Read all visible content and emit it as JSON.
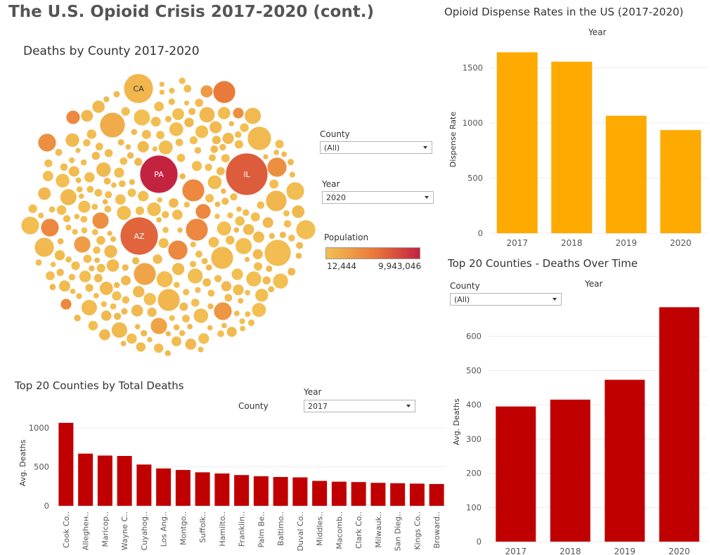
{
  "dashboard_title": "The U.S. Opioid Crisis 2017-2020 (cont.)",
  "bubble": {
    "title": "Deaths by County 2017-2020",
    "labels": [
      "PA",
      "CA",
      "IL",
      "AZ"
    ],
    "filters": {
      "county_label": "County",
      "county_value": "(All)",
      "year_label": "Year",
      "year_value": "2020"
    },
    "legend": {
      "title": "Population",
      "min_label": "12,444",
      "max_label": "9,943,046",
      "colors": [
        "#f2c052",
        "#ea7a3a",
        "#c42340"
      ]
    }
  },
  "dispense": {
    "title": "Opioid Dispense Rates in the US (2017-2020)",
    "header": "Year",
    "ylabel": "Dispense Rate",
    "color": "#ffaa00"
  },
  "top20": {
    "title": "Top 20 Counties by Total Deaths",
    "county_label": "County",
    "year_label": "Year",
    "year_value": "2017",
    "ylabel": "Avg. Deaths",
    "color": "#c00000"
  },
  "over_time": {
    "title": "Top 20 Counties - Deaths Over Time",
    "county_label": "County",
    "county_value": "(All)",
    "header": "Year",
    "ylabel": "Avg. Deaths",
    "color": "#c00000"
  },
  "chart_data": [
    {
      "id": "dispense",
      "type": "bar",
      "categories": [
        "2017",
        "2018",
        "2019",
        "2020"
      ],
      "values": [
        1640,
        1555,
        1065,
        935
      ],
      "ylabel": "Dispense Rate",
      "ylim": [
        0,
        1700
      ],
      "yticks": [
        0,
        500,
        1000,
        1500
      ],
      "grid": true
    },
    {
      "id": "top20",
      "type": "bar",
      "categories": [
        "Cook Co..",
        "Allegheн..",
        "Maricop..",
        "Wayne C..",
        "Cuyahog..",
        "Los Ang..",
        "Montgo..",
        "Suffolk..",
        "Hamilto..",
        "Franklin..",
        "Palm Be..",
        "Baltimo..",
        "Duval Co..",
        "Middles..",
        "Macomb..",
        "Clark Co..",
        "Milwauk..",
        "San Dieg..",
        "Kings Co..",
        "Broward.."
      ],
      "values": [
        1065,
        670,
        645,
        640,
        530,
        480,
        460,
        430,
        415,
        395,
        380,
        370,
        365,
        320,
        310,
        305,
        295,
        290,
        285,
        280
      ],
      "ylabel": "Avg. Deaths",
      "ylim": [
        0,
        1100
      ],
      "yticks": [
        0,
        500,
        1000
      ],
      "grid": true
    },
    {
      "id": "over_time",
      "type": "bar",
      "categories": [
        "2017",
        "2018",
        "2019",
        "2020"
      ],
      "values": [
        395,
        415,
        473,
        685
      ],
      "ylabel": "Avg. Deaths",
      "ylim": [
        0,
        700
      ],
      "yticks": [
        0,
        100,
        200,
        300,
        400,
        500,
        600
      ],
      "grid": true
    }
  ]
}
